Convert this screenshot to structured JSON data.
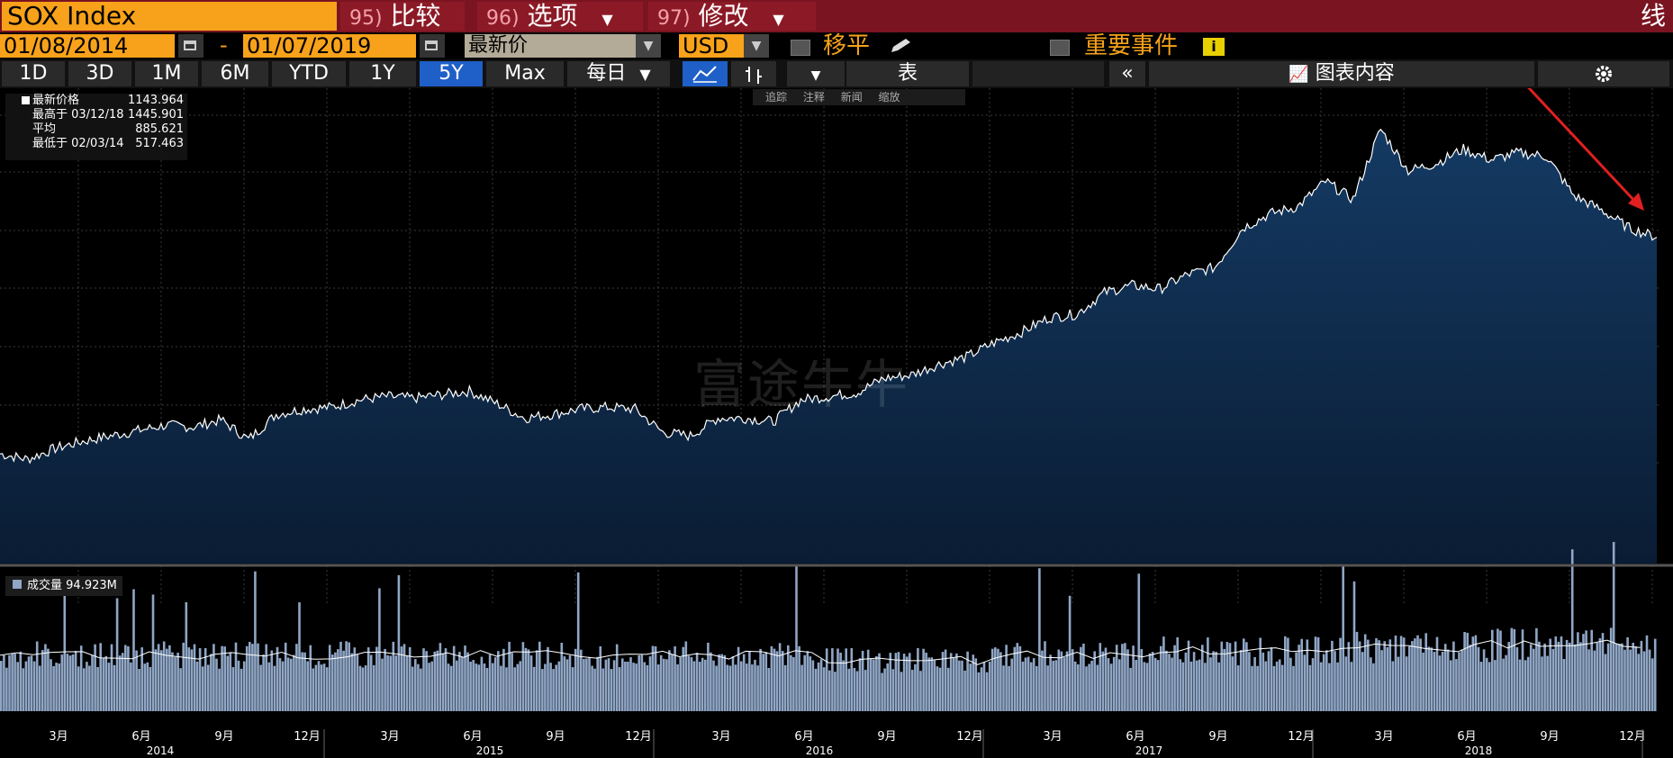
{
  "header": {
    "ticker": "SOX Index",
    "compare_num": "95)",
    "compare_label": "比较",
    "options_num": "96)",
    "options_label": "选项",
    "modify_num": "97)",
    "modify_label": "修改",
    "right_label": "线"
  },
  "controls": {
    "start_date": "01/08/2014",
    "end_date": "01/07/2019",
    "dash": "-",
    "price_field": "最新价",
    "currency": "USD",
    "moving_avg_label": "移平",
    "events_label": "重要事件",
    "info_icon": "i"
  },
  "toolbar": {
    "ranges": [
      "1D",
      "3D",
      "1M",
      "6M",
      "YTD",
      "1Y",
      "5Y",
      "Max"
    ],
    "active_range": "5Y",
    "frequency": "每日",
    "table_label": "表",
    "collapse_label": "«",
    "chart_content_label": "图表内容"
  },
  "chart_tools": [
    "追踪",
    "注释",
    "新闻",
    "缩放"
  ],
  "legend": {
    "last_label": "最新价格",
    "last_value": "1143.964",
    "high_label": "最高于 03/12/18",
    "high_value": "1445.901",
    "avg_label": "平均",
    "avg_value": "885.621",
    "low_label": "最低于 02/03/14",
    "low_value": "517.463"
  },
  "volume_legend": {
    "label": "成交量",
    "value": "94.923M"
  },
  "watermark": "富途牛牛",
  "colors": {
    "header": "#7a1420",
    "orange": "#f7a21a",
    "area": "#0f2a4a",
    "line": "#ffffff",
    "volume": "#8fa6c6",
    "arrow": "#e02020"
  },
  "chart_data": [
    {
      "type": "area",
      "series": [
        {
          "name": "最新价格",
          "x": [
            "2014-01",
            "2014-02",
            "2014-03",
            "2014-04",
            "2014-05",
            "2014-06",
            "2014-07",
            "2014-08",
            "2014-09",
            "2014-10",
            "2014-11",
            "2014-12",
            "2015-01",
            "2015-02",
            "2015-03",
            "2015-04",
            "2015-05",
            "2015-06",
            "2015-07",
            "2015-08",
            "2015-09",
            "2015-10",
            "2015-11",
            "2015-12",
            "2016-01",
            "2016-02",
            "2016-03",
            "2016-04",
            "2016-05",
            "2016-06",
            "2016-07",
            "2016-08",
            "2016-09",
            "2016-10",
            "2016-11",
            "2016-12",
            "2017-01",
            "2017-02",
            "2017-03",
            "2017-04",
            "2017-05",
            "2017-06",
            "2017-07",
            "2017-08",
            "2017-09",
            "2017-10",
            "2017-11",
            "2017-12",
            "2018-01",
            "2018-02",
            "2018-03",
            "2018-04",
            "2018-05",
            "2018-06",
            "2018-07",
            "2018-08",
            "2018-09",
            "2018-10",
            "2018-11",
            "2018-12",
            "2019-01"
          ],
          "values": [
            540,
            525,
            555,
            575,
            590,
            605,
            620,
            615,
            635,
            580,
            650,
            665,
            670,
            690,
            700,
            695,
            705,
            715,
            680,
            640,
            650,
            665,
            670,
            665,
            600,
            590,
            640,
            640,
            630,
            690,
            700,
            710,
            750,
            760,
            790,
            810,
            850,
            880,
            920,
            930,
            990,
            1010,
            1000,
            1040,
            1060,
            1170,
            1210,
            1230,
            1300,
            1250,
            1445.9,
            1330,
            1350,
            1390,
            1360,
            1380,
            1370,
            1260,
            1220,
            1170,
            1144
          ]
        }
      ],
      "ylim": [
        480,
        1560
      ]
    },
    {
      "type": "bar",
      "series": [
        {
          "name": "成交量",
          "x": [
            "2014-01",
            "2014-07",
            "2015-01",
            "2015-07",
            "2016-01",
            "2016-07",
            "2017-01",
            "2017-07",
            "2018-01",
            "2018-07",
            "2019-01"
          ],
          "values": [
            75,
            75,
            75,
            75,
            75,
            68,
            75,
            80,
            85,
            90,
            94.9
          ]
        }
      ]
    }
  ],
  "x_axis": {
    "months": [
      "3月",
      "6月",
      "9月",
      "12月",
      "3月",
      "6月",
      "9月",
      "12月",
      "3月",
      "6月",
      "9月",
      "12月",
      "3月",
      "6月",
      "9月",
      "12月",
      "3月",
      "6月",
      "9月",
      "12月"
    ],
    "years": [
      "2014",
      "2015",
      "2016",
      "2017",
      "2018"
    ]
  }
}
